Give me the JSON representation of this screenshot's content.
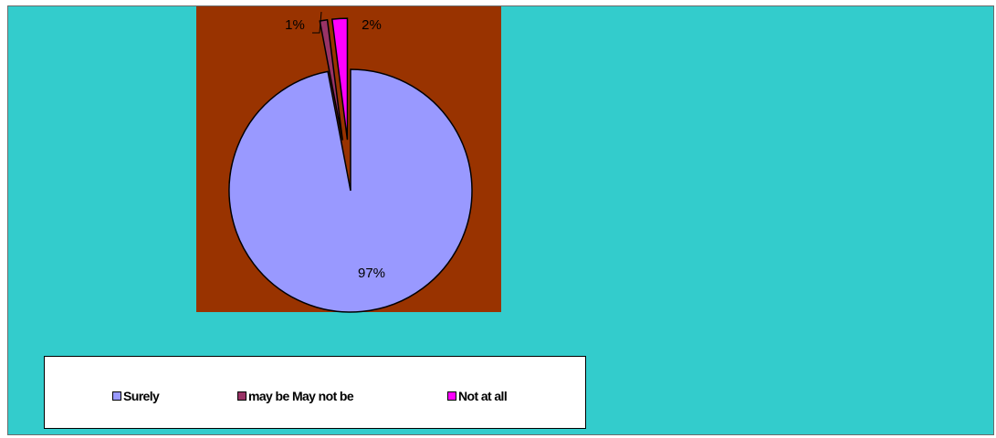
{
  "chart_data": {
    "type": "pie",
    "categories": [
      "Surely",
      "may be May not be",
      "Not at all"
    ],
    "values": [
      97,
      1,
      2
    ],
    "data_labels": [
      "97%",
      "1%",
      "2%"
    ],
    "colors": [
      "#9999ff",
      "#993366",
      "#ff00ff"
    ],
    "exploded": [
      false,
      true,
      true
    ],
    "legend_position": "bottom",
    "plot_background": "#993300",
    "chart_background": "#33cccc"
  },
  "legend": {
    "items": [
      {
        "label": "Surely",
        "color": "#9999ff"
      },
      {
        "label": "may be May not be",
        "color": "#993366"
      },
      {
        "label": "Not at all",
        "color": "#ff00ff"
      }
    ]
  }
}
